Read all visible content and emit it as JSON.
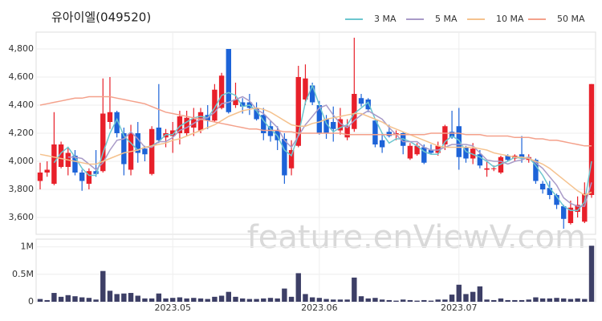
{
  "chart_data": [
    {
      "type": "candlestick",
      "title": "유아이엘(049520)",
      "watermark": "feature.enViewV.com",
      "categories": [
        null,
        null,
        null,
        null,
        null,
        null,
        null,
        null,
        null,
        null,
        null,
        null,
        null,
        null,
        null,
        null,
        null,
        null,
        null,
        "2023.05",
        null,
        null,
        null,
        null,
        null,
        null,
        null,
        null,
        null,
        null,
        null,
        null,
        null,
        null,
        null,
        null,
        null,
        null,
        null,
        null,
        "2023.06",
        null,
        null,
        null,
        null,
        null,
        null,
        null,
        null,
        null,
        null,
        null,
        null,
        null,
        null,
        null,
        null,
        null,
        null,
        null,
        "2023.07",
        null,
        null,
        null,
        null,
        null,
        null,
        null,
        null,
        null,
        null,
        null,
        null,
        null,
        null,
        null,
        null,
        null,
        null,
        null
      ],
      "open": [
        3860,
        3920,
        3840,
        3960,
        3960,
        4040,
        3920,
        3840,
        3930,
        3930,
        4280,
        4350,
        4200,
        3940,
        4200,
        4090,
        3910,
        4240,
        4170,
        4180,
        4200,
        4200,
        4240,
        4220,
        4330,
        4290,
        4380,
        4800,
        4400,
        4420,
        4420,
        4380,
        4330,
        4250,
        4220,
        4160,
        3950,
        4110,
        4440,
        4540,
        4400,
        4300,
        4280,
        4220,
        4170,
        4230,
        4450,
        4440,
        4290,
        4150,
        4210,
        4190,
        4200,
        4020,
        4050,
        4100,
        4080,
        4060,
        4120,
        4210,
        4250,
        4100,
        4020,
        4050,
        3940,
        3950,
        3920,
        4040,
        4020,
        4050,
        4010,
        4010,
        3840,
        3810,
        3760,
        3680,
        3560,
        3640,
        3570,
        3760
      ],
      "high": [
        3990,
        4000,
        4350,
        4140,
        4100,
        4080,
        3940,
        3950,
        4080,
        4590,
        4600,
        4360,
        4240,
        4260,
        4280,
        4110,
        4250,
        4550,
        4230,
        4280,
        4360,
        4360,
        4380,
        4380,
        4400,
        4550,
        4630,
        4800,
        4560,
        4450,
        4480,
        4420,
        4380,
        4290,
        4250,
        4200,
        4150,
        4680,
        4690,
        4560,
        4430,
        4330,
        4390,
        4380,
        4300,
        4880,
        4480,
        4450,
        4300,
        4200,
        4260,
        4220,
        4210,
        4130,
        4130,
        4120,
        4120,
        4140,
        4260,
        4360,
        4380,
        4110,
        4130,
        4080,
        4000,
        3970,
        4040,
        4050,
        4050,
        4180,
        4050,
        4020,
        3860,
        3860,
        3770,
        3690,
        3720,
        3750,
        3850,
        4550
      ],
      "low": [
        3800,
        3890,
        3830,
        3950,
        3900,
        3900,
        3790,
        3800,
        3890,
        3920,
        4230,
        4170,
        3900,
        3900,
        3990,
        4000,
        3900,
        4130,
        4100,
        4060,
        4120,
        4180,
        4180,
        4200,
        4230,
        4280,
        4370,
        4340,
        4380,
        4340,
        4330,
        4290,
        4150,
        4140,
        4080,
        3840,
        3900,
        4100,
        4400,
        4400,
        4190,
        4160,
        4140,
        4190,
        4150,
        4210,
        4390,
        4350,
        4100,
        4060,
        4170,
        4150,
        4050,
        4010,
        4040,
        3980,
        4050,
        4040,
        4080,
        4160,
        3940,
        3990,
        3980,
        3950,
        3890,
        3930,
        3910,
        4000,
        4000,
        3990,
        3990,
        3840,
        3770,
        3730,
        3660,
        3520,
        3550,
        3600,
        3560,
        3740
      ],
      "close": [
        3920,
        3940,
        4120,
        4120,
        4060,
        3920,
        3860,
        3930,
        3910,
        4340,
        4350,
        4200,
        3980,
        4200,
        4060,
        4050,
        4230,
        4150,
        4200,
        4220,
        4320,
        4310,
        4300,
        4350,
        4290,
        4510,
        4610,
        4350,
        4440,
        4390,
        4380,
        4300,
        4200,
        4180,
        4150,
        3900,
        4080,
        4600,
        4590,
        4420,
        4200,
        4200,
        4230,
        4300,
        4250,
        4480,
        4410,
        4370,
        4120,
        4100,
        4180,
        4200,
        4110,
        4110,
        4110,
        3990,
        4060,
        4110,
        4250,
        4170,
        4030,
        4020,
        4090,
        3970,
        3950,
        3950,
        4030,
        4010,
        4040,
        4020,
        4030,
        3860,
        3800,
        3760,
        3690,
        3590,
        3670,
        3690,
        3770,
        4550
      ],
      "up_color": "#e8202a",
      "down_color": "#1d63d8",
      "series": [
        {
          "name": "3 MA",
          "color": "#6cc6cf",
          "values": [
            null,
            null,
            3990,
            4060,
            4100,
            4030,
            3950,
            3900,
            3900,
            4060,
            4200,
            4300,
            4180,
            4130,
            4080,
            4100,
            4110,
            4140,
            4190,
            4190,
            4250,
            4280,
            4310,
            4320,
            4310,
            4380,
            4470,
            4490,
            4470,
            4390,
            4400,
            4360,
            4290,
            4230,
            4180,
            4080,
            4040,
            4190,
            4420,
            4540,
            4400,
            4270,
            4210,
            4240,
            4260,
            4340,
            4380,
            4420,
            4300,
            4200,
            4130,
            4160,
            4160,
            4140,
            4110,
            4070,
            4050,
            4050,
            4140,
            4180,
            4150,
            4070,
            4050,
            4030,
            4000,
            3960,
            3980,
            4000,
            4030,
            4020,
            4030,
            3970,
            3900,
            3810,
            3750,
            3680,
            3650,
            3650,
            3710,
            4000
          ]
        },
        {
          "name": "5 MA",
          "color": "#a99bc8",
          "values": [
            null,
            null,
            null,
            null,
            4030,
            4030,
            4020,
            3980,
            3940,
            3990,
            4080,
            4150,
            4160,
            4210,
            4160,
            4100,
            4100,
            4140,
            4140,
            4170,
            4220,
            4240,
            4270,
            4300,
            4310,
            4350,
            4410,
            4420,
            4440,
            4460,
            4430,
            4370,
            4340,
            4290,
            4240,
            4150,
            4100,
            4180,
            4260,
            4320,
            4380,
            4400,
            4330,
            4270,
            4240,
            4290,
            4330,
            4360,
            4330,
            4300,
            4240,
            4190,
            4140,
            4140,
            4140,
            4100,
            4080,
            4080,
            4100,
            4120,
            4120,
            4120,
            4110,
            4060,
            4010,
            4000,
            4000,
            3980,
            4000,
            4010,
            4030,
            3990,
            3950,
            3890,
            3830,
            3740,
            3700,
            3680,
            3680,
            3850
          ]
        },
        {
          "name": "10 MA",
          "color": "#f5c28e",
          "values": [
            4050,
            4040,
            4030,
            4020,
            4010,
            4000,
            3990,
            3980,
            3980,
            4000,
            4020,
            4040,
            4060,
            4070,
            4080,
            4100,
            4110,
            4120,
            4130,
            4150,
            4160,
            4180,
            4200,
            4220,
            4240,
            4260,
            4290,
            4320,
            4340,
            4360,
            4370,
            4380,
            4370,
            4350,
            4320,
            4290,
            4260,
            4250,
            4250,
            4270,
            4280,
            4300,
            4310,
            4320,
            4330,
            4340,
            4340,
            4320,
            4300,
            4280,
            4250,
            4230,
            4210,
            4190,
            4170,
            4150,
            4130,
            4110,
            4100,
            4100,
            4100,
            4100,
            4100,
            4090,
            4080,
            4060,
            4050,
            4040,
            4030,
            4030,
            4020,
            4000,
            3980,
            3950,
            3910,
            3870,
            3830,
            3790,
            3760,
            3780
          ]
        },
        {
          "name": "50 MA",
          "color": "#f4a18b",
          "values": [
            4400,
            4410,
            4420,
            4430,
            4440,
            4450,
            4450,
            4460,
            4460,
            4460,
            4460,
            4450,
            4440,
            4430,
            4420,
            4410,
            4390,
            4370,
            4350,
            4340,
            4330,
            4320,
            4310,
            4300,
            4290,
            4280,
            4270,
            4260,
            4250,
            4240,
            4230,
            4230,
            4220,
            4220,
            4220,
            4210,
            4210,
            4200,
            4200,
            4200,
            4200,
            4200,
            4200,
            4200,
            4190,
            4190,
            4190,
            4190,
            4190,
            4190,
            4190,
            4190,
            4190,
            4190,
            4190,
            4190,
            4200,
            4200,
            4200,
            4200,
            4200,
            4190,
            4190,
            4190,
            4180,
            4180,
            4180,
            4180,
            4170,
            4170,
            4170,
            4160,
            4160,
            4150,
            4150,
            4140,
            4130,
            4120,
            4110,
            4110
          ]
        }
      ],
      "ylim": [
        3480,
        4920
      ],
      "yticks": [
        {
          "value": 3600,
          "label": "3,600"
        },
        {
          "value": 3800,
          "label": "3,800"
        },
        {
          "value": 4000,
          "label": "4,000"
        },
        {
          "value": 4200,
          "label": "4,200"
        },
        {
          "value": 4400,
          "label": "4,400"
        },
        {
          "value": 4600,
          "label": "4,600"
        },
        {
          "value": 4800,
          "label": "4,800"
        }
      ],
      "grid": true
    },
    {
      "type": "bar",
      "color": "#3d3f66",
      "values": [
        50000,
        30000,
        160000,
        90000,
        120000,
        100000,
        80000,
        70000,
        40000,
        560000,
        200000,
        140000,
        150000,
        160000,
        110000,
        60000,
        60000,
        150000,
        60000,
        70000,
        80000,
        60000,
        70000,
        60000,
        50000,
        90000,
        110000,
        180000,
        90000,
        60000,
        50000,
        50000,
        60000,
        70000,
        60000,
        240000,
        90000,
        520000,
        140000,
        80000,
        70000,
        50000,
        40000,
        40000,
        40000,
        440000,
        100000,
        60000,
        70000,
        40000,
        30000,
        20000,
        40000,
        30000,
        20000,
        30000,
        20000,
        40000,
        40000,
        130000,
        310000,
        140000,
        180000,
        280000,
        40000,
        30000,
        60000,
        30000,
        30000,
        30000,
        40000,
        80000,
        60000,
        60000,
        70000,
        60000,
        50000,
        60000,
        50000,
        1020000
      ],
      "ylim": [
        0,
        1140000
      ],
      "yticks": [
        0,
        {
          "value": 500000,
          "label": "0.5M"
        },
        {
          "value": 1000000,
          "label": "1M"
        }
      ]
    }
  ]
}
